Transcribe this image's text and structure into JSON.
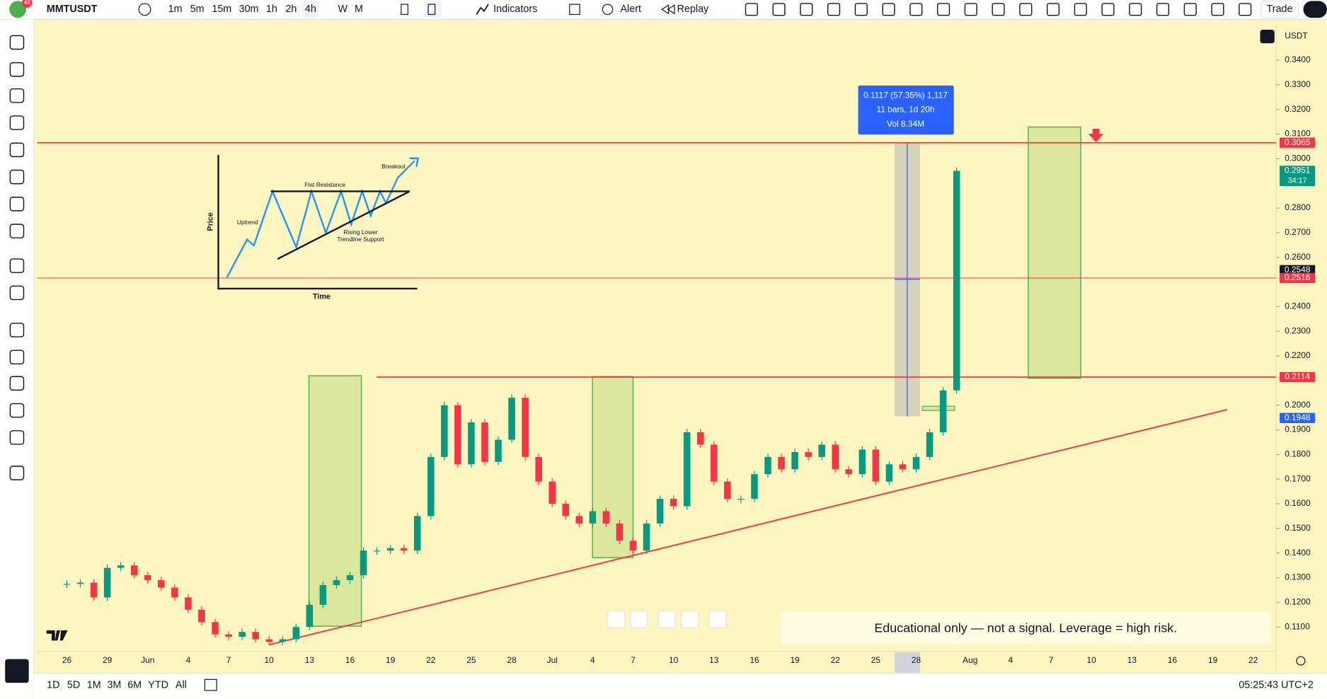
{
  "toolbar": {
    "badge": "48",
    "symbol": "MMTUSDT",
    "timeframes": [
      "1m",
      "5m",
      "15m",
      "30m",
      "1h",
      "2h",
      "4h",
      "W",
      "M"
    ],
    "indicators": "Indicators",
    "alert": "Alert",
    "replay": "Replay",
    "trade": "Trade"
  },
  "price_axis": {
    "currency": "USDT",
    "ticks": [
      {
        "value": 0.34,
        "label": "0.3400"
      },
      {
        "value": 0.33,
        "label": "0.3300"
      },
      {
        "value": 0.32,
        "label": "0.3200"
      },
      {
        "value": 0.31,
        "label": "0.3100"
      },
      {
        "value": 0.3,
        "label": "0.3000"
      },
      {
        "value": 0.28,
        "label": "0.2800"
      },
      {
        "value": 0.27,
        "label": "0.2700"
      },
      {
        "value": 0.26,
        "label": "0.2600"
      },
      {
        "value": 0.24,
        "label": "0.2400"
      },
      {
        "value": 0.23,
        "label": "0.2300"
      },
      {
        "value": 0.22,
        "label": "0.2200"
      },
      {
        "value": 0.2,
        "label": "0.2000"
      },
      {
        "value": 0.19,
        "label": "0.1900"
      },
      {
        "value": 0.18,
        "label": "0.1800"
      },
      {
        "value": 0.17,
        "label": "0.1700"
      },
      {
        "value": 0.16,
        "label": "0.1600"
      },
      {
        "value": 0.15,
        "label": "0.1500"
      },
      {
        "value": 0.14,
        "label": "0.1400"
      },
      {
        "value": 0.13,
        "label": "0.1300"
      },
      {
        "value": 0.12,
        "label": "0.1200"
      },
      {
        "value": 0.11,
        "label": "0.1100"
      }
    ],
    "levels": [
      {
        "value": 0.3065,
        "color": "#f23645",
        "line": true
      },
      {
        "value": 0.2951,
        "color": "#089981",
        "countdown": "34:17"
      },
      {
        "value": 0.2548,
        "color": "#131722"
      },
      {
        "value": 0.2516,
        "color": "#f23645",
        "line": true
      },
      {
        "value": 0.2114,
        "color": "#f23645",
        "line": true
      },
      {
        "value": 0.1948,
        "color": "#2962ff"
      }
    ]
  },
  "date_axis": {
    "labels": [
      "26",
      "29",
      "Jun",
      "4",
      "7",
      "10",
      "13",
      "16",
      "19",
      "22",
      "25",
      "28",
      "Jul",
      "4",
      "7",
      "10",
      "13",
      "16",
      "19",
      "22",
      "25",
      "28",
      "Aug",
      "4",
      "7",
      "10",
      "13",
      "16",
      "19",
      "22"
    ]
  },
  "candles": {
    "closes": [
      0.1275,
      0.128,
      0.122,
      0.134,
      0.135,
      0.131,
      0.129,
      0.126,
      0.122,
      0.117,
      0.112,
      0.107,
      0.106,
      0.108,
      0.105,
      0.104,
      0.105,
      0.11,
      0.119,
      0.127,
      0.129,
      0.131,
      0.141,
      0.141,
      0.142,
      0.141,
      0.155,
      0.179,
      0.2,
      0.176,
      0.193,
      0.177,
      0.186,
      0.203,
      0.179,
      0.169,
      0.16,
      0.155,
      0.152,
      0.157,
      0.152,
      0.145,
      0.141,
      0.152,
      0.162,
      0.159,
      0.189,
      0.184,
      0.169,
      0.162,
      0.162,
      0.172,
      0.179,
      0.174,
      0.181,
      0.179,
      0.184,
      0.174,
      0.172,
      0.182,
      0.169,
      0.176,
      0.174,
      0.179,
      0.189,
      0.206,
      0.2951
    ]
  },
  "trendline": {
    "start": 0.1028,
    "end": 0.1982
  },
  "measure": {
    "lines": [
      "0.1117 (57.35%) 1,117",
      "11 bars, 1d 20h",
      "Vol 8.34M"
    ]
  },
  "inset": {
    "breakout": "Breakout",
    "flat_resistance": "Flat Resistance",
    "uptrend": "Uptrend",
    "support_line1": "Rising Lower",
    "support_line2": "Trendline Support",
    "y_label": "Price",
    "x_label": "Time"
  },
  "note": "Educational only — not a signal. Leverage  = high risk.",
  "bottom_bar": {
    "ranges": [
      "1D",
      "5D",
      "1M",
      "3M",
      "6M",
      "YTD",
      "All"
    ],
    "clock": "05:25:43 UTC+2"
  }
}
